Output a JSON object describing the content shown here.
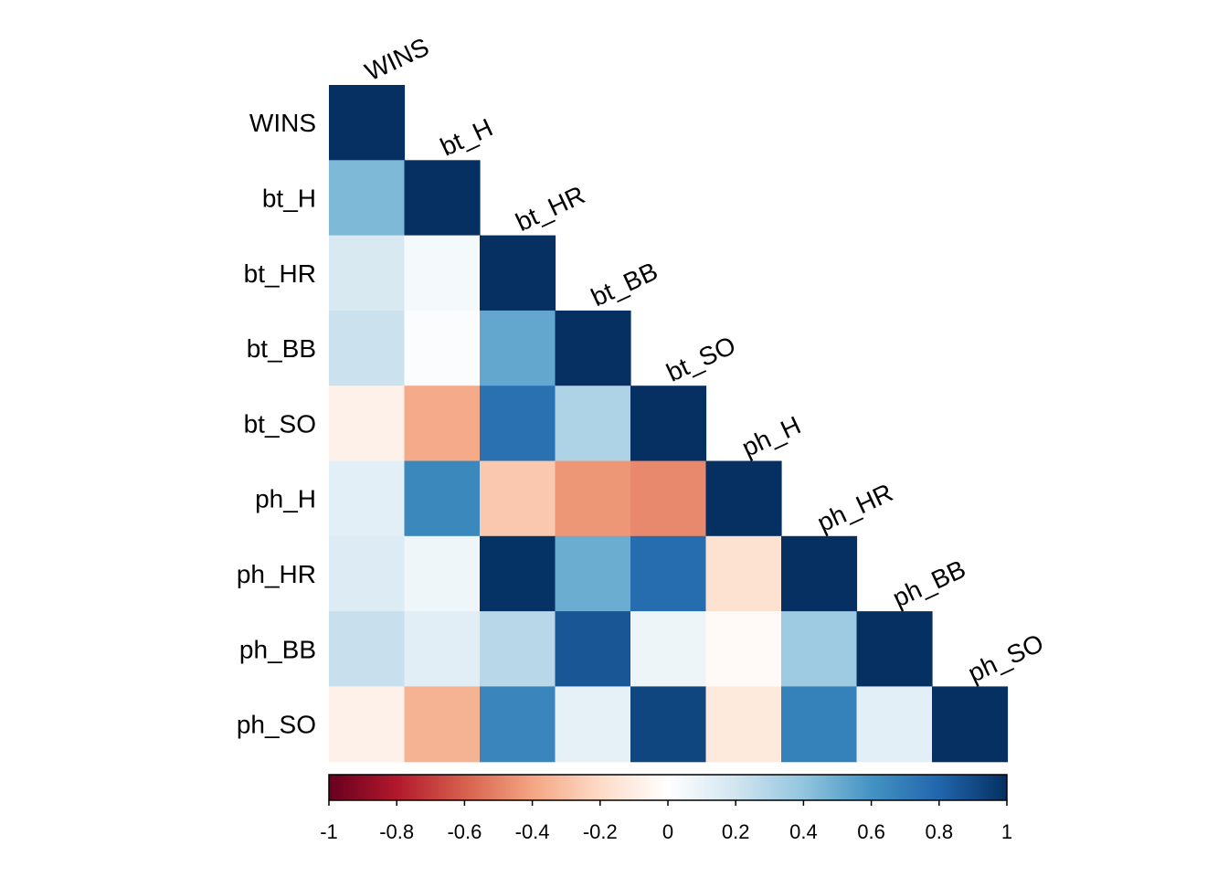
{
  "chart_data": {
    "type": "heatmap",
    "variables": [
      "WINS",
      "bt_H",
      "bt_HR",
      "bt_BB",
      "bt_SO",
      "ph_H",
      "ph_HR",
      "ph_BB",
      "ph_SO"
    ],
    "shape": "lower-triangle",
    "matrix": [
      [
        1.0
      ],
      [
        0.45,
        1.0
      ],
      [
        0.17,
        0.05,
        1.0
      ],
      [
        0.22,
        0.02,
        0.52,
        1.0
      ],
      [
        -0.08,
        -0.38,
        0.75,
        0.31,
        1.0
      ],
      [
        0.12,
        0.65,
        -0.27,
        -0.44,
        -0.48,
        1.0
      ],
      [
        0.15,
        0.07,
        0.99,
        0.5,
        0.77,
        -0.16,
        1.0
      ],
      [
        0.23,
        0.13,
        0.28,
        0.86,
        0.08,
        -0.03,
        0.36,
        1.0
      ],
      [
        -0.08,
        -0.35,
        0.66,
        0.11,
        0.92,
        -0.12,
        0.68,
        0.12,
        1.0
      ]
    ],
    "color_scale": {
      "min": -1,
      "max": 1,
      "ticks": [
        "-1",
        "-0.8",
        "-0.6",
        "-0.4",
        "-0.2",
        "0",
        "0.2",
        "0.4",
        "0.6",
        "0.8",
        "1"
      ],
      "colors": [
        "#67001F",
        "#B2182B",
        "#D6604D",
        "#F4A582",
        "#FDDBC7",
        "#FFFFFF",
        "#D1E5F0",
        "#92C5DE",
        "#4393C3",
        "#2166AC",
        "#053061"
      ]
    },
    "legend_position": "bottom",
    "column_labels_rotation_deg": -25
  }
}
